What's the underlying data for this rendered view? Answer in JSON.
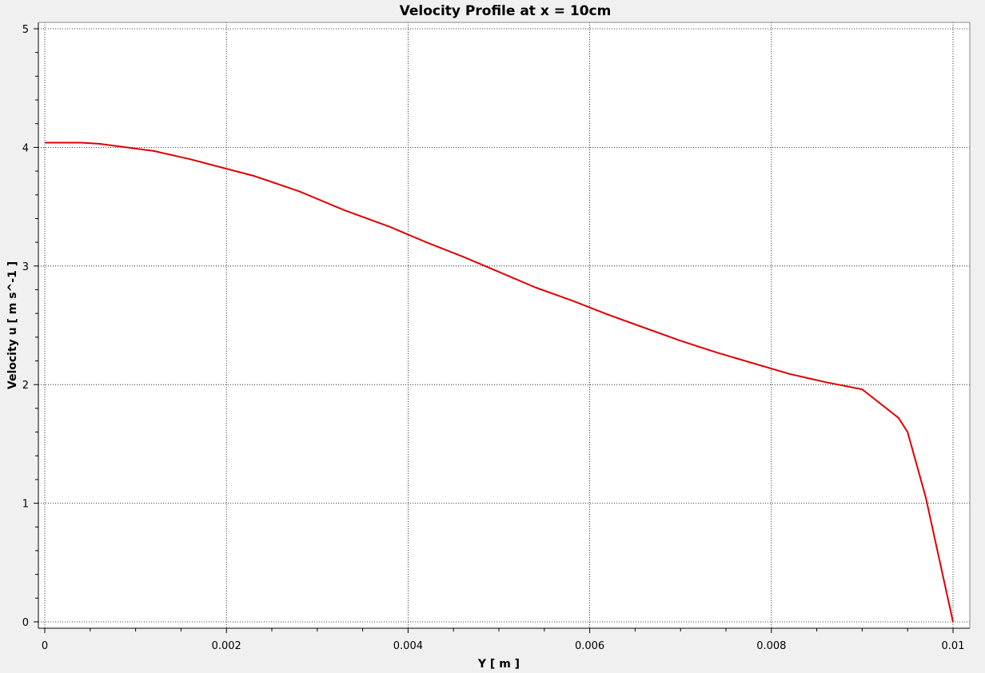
{
  "chart_data": {
    "type": "line",
    "title": "Velocity Profile at x = 10cm",
    "xlabel": "Y [ m ]",
    "ylabel": "Velocity u [ m s^-1 ]",
    "xlim": [
      0,
      0.01
    ],
    "ylim": [
      0,
      5
    ],
    "x_ticks": [
      0,
      0.002,
      0.004,
      0.006,
      0.008,
      0.01
    ],
    "x_tick_labels": [
      "0",
      "0.002",
      "0.004",
      "0.006",
      "0.008",
      "0.01"
    ],
    "y_ticks": [
      0,
      1,
      2,
      3,
      4,
      5
    ],
    "y_tick_labels": [
      "0",
      "1",
      "2",
      "3",
      "4",
      "5"
    ],
    "grid": true,
    "series": [
      {
        "color": "#e00000",
        "x": [
          0,
          0.0004,
          0.0006,
          0.0008,
          0.0012,
          0.0016,
          0.002,
          0.0023,
          0.0028,
          0.0033,
          0.0038,
          0.0042,
          0.0046,
          0.005,
          0.0054,
          0.0058,
          0.0062,
          0.0066,
          0.007,
          0.0074,
          0.0078,
          0.0082,
          0.0086,
          0.009,
          0.0094,
          0.0095,
          0.0097,
          0.0099,
          0.01
        ],
        "y": [
          4.04,
          4.04,
          4.03,
          4.01,
          3.97,
          3.9,
          3.82,
          3.76,
          3.63,
          3.47,
          3.33,
          3.2,
          3.08,
          2.95,
          2.82,
          2.71,
          2.59,
          2.48,
          2.37,
          2.27,
          2.18,
          2.09,
          2.02,
          1.96,
          1.72,
          1.6,
          1.05,
          0.35,
          0.0
        ]
      }
    ]
  }
}
